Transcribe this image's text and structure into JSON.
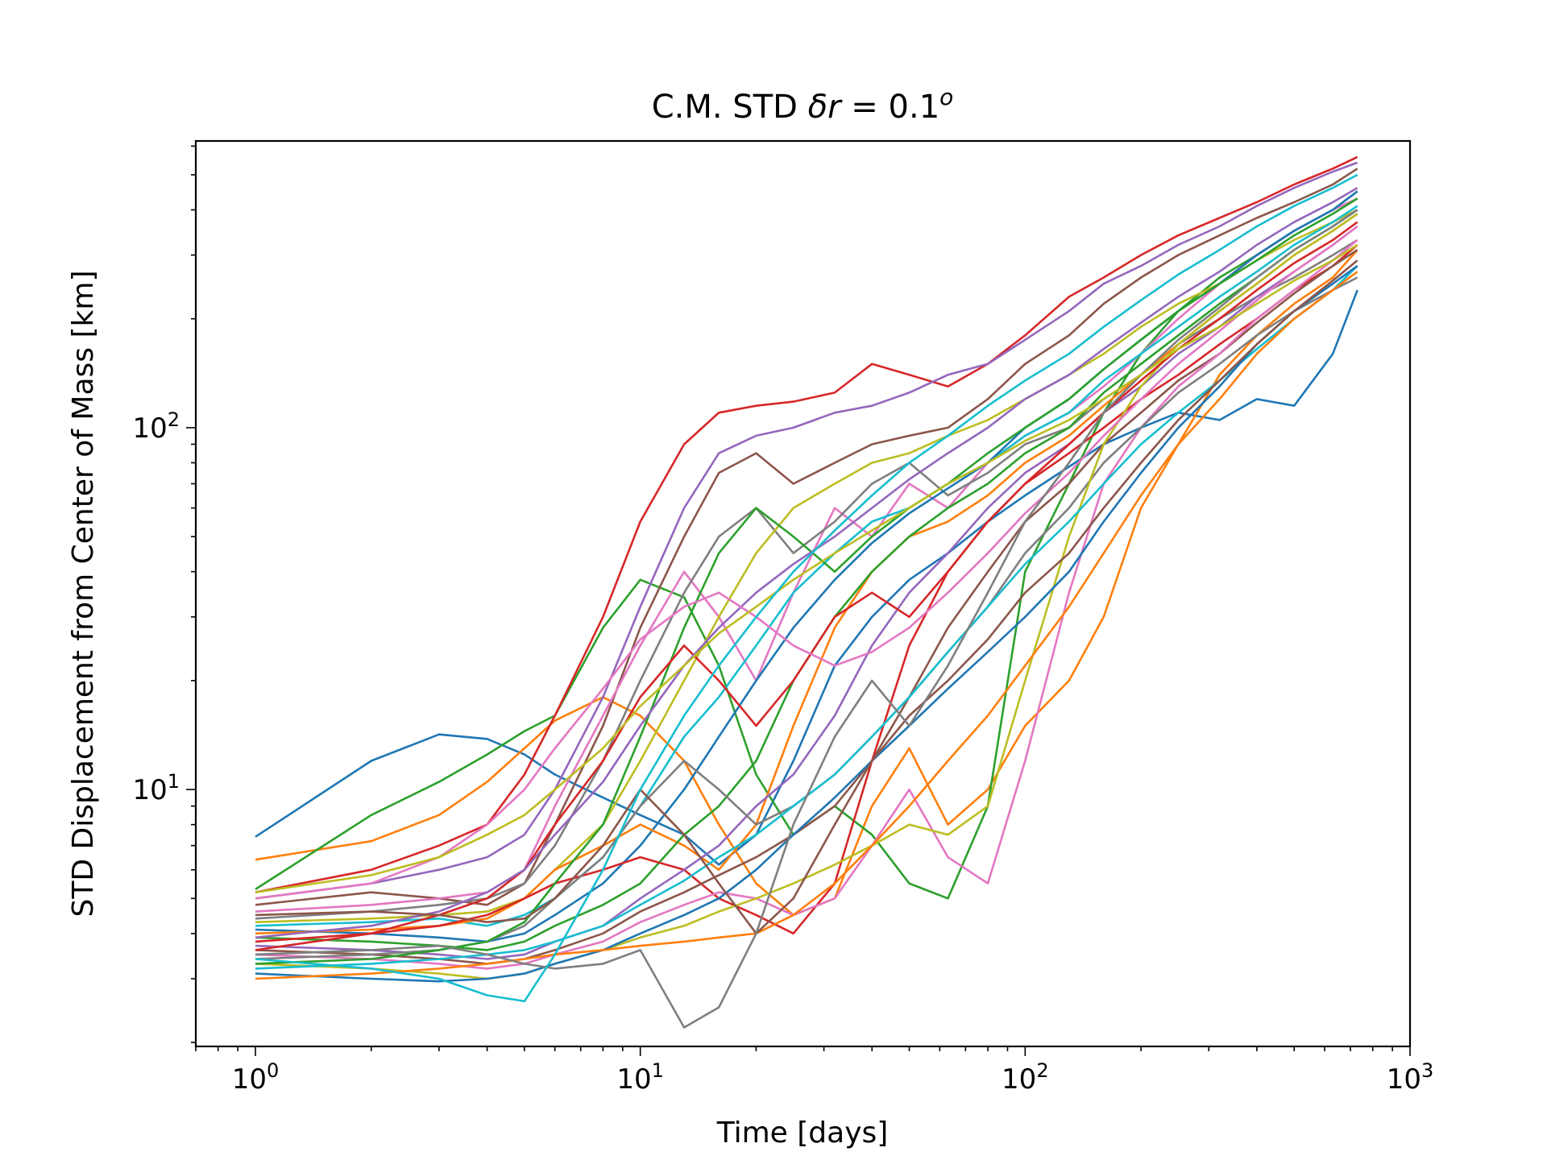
{
  "chart_data": {
    "type": "line",
    "title_text": "C.M. STD ",
    "title_math_var": "δr",
    "title_math_eq": " = 0.1",
    "title_math_sup": "o",
    "xlabel": "Time [days]",
    "ylabel": "STD Displacement from Center of Mass [km]",
    "xscale": "log",
    "yscale": "log",
    "xlim": [
      0.7,
      1000
    ],
    "ylim": [
      1.95,
      620
    ],
    "grid": false,
    "legend": "none",
    "x_ticks": [
      {
        "base": "10",
        "exp": "0",
        "value": 1
      },
      {
        "base": "10",
        "exp": "1",
        "value": 10
      },
      {
        "base": "10",
        "exp": "2",
        "value": 100
      },
      {
        "base": "10",
        "exp": "3",
        "value": 1000
      }
    ],
    "y_ticks": [
      {
        "base": "10",
        "exp": "1",
        "value": 10
      },
      {
        "base": "10",
        "exp": "2",
        "value": 100
      }
    ],
    "x": [
      1,
      2,
      3,
      4,
      5,
      6,
      8,
      10,
      13,
      16,
      20,
      25,
      32,
      40,
      50,
      63,
      80,
      100,
      130,
      160,
      200,
      250,
      320,
      400,
      500,
      630,
      730
    ],
    "palette": [
      "#1f77b4",
      "#ff7f0e",
      "#2ca02c",
      "#d62728",
      "#9467bd",
      "#8c564b",
      "#e377c2",
      "#7f7f7f",
      "#bcbd22",
      "#17becf"
    ],
    "series": [
      {
        "values": [
          7.4,
          12.0,
          14.2,
          13.8,
          12.5,
          11.0,
          9.5,
          8.5,
          7.5,
          6.2,
          7.5,
          12.0,
          22.0,
          30.0,
          38.0,
          45.0,
          55.0,
          65.0,
          78.0,
          90.0,
          100.0,
          110.0,
          105.0,
          120.0,
          115.0,
          160.0,
          240.0
        ]
      },
      {
        "values": [
          6.4,
          7.2,
          8.5,
          10.5,
          13.0,
          15.5,
          18.0,
          16.0,
          12.0,
          8.0,
          5.5,
          4.5,
          5.0,
          9.0,
          13.0,
          8.0,
          10.0,
          15.0,
          20.0,
          30.0,
          60.0,
          90.0,
          140.0,
          180.0,
          220.0,
          260.0,
          310.0
        ]
      },
      {
        "values": [
          5.3,
          8.5,
          10.5,
          12.5,
          14.5,
          16.0,
          28.0,
          38.0,
          34.0,
          22.0,
          11.0,
          7.5,
          9.0,
          7.5,
          5.5,
          5.0,
          9.0,
          40.0,
          70.0,
          110.0,
          160.0,
          210.0,
          260.0,
          300.0,
          350.0,
          400.0,
          450.0
        ]
      },
      {
        "values": [
          5.2,
          6.0,
          7.0,
          8.0,
          11.0,
          16.0,
          30.0,
          55.0,
          90.0,
          110.0,
          115.0,
          118.0,
          125.0,
          150.0,
          140.0,
          130.0,
          150.0,
          180.0,
          230.0,
          260.0,
          300.0,
          340.0,
          380.0,
          420.0,
          470.0,
          520.0,
          560.0
        ]
      },
      {
        "values": [
          5.0,
          5.5,
          6.0,
          6.5,
          7.5,
          10.0,
          18.0,
          32.0,
          60.0,
          85.0,
          95.0,
          100.0,
          110.0,
          115.0,
          125.0,
          140.0,
          150.0,
          175.0,
          210.0,
          250.0,
          280.0,
          320.0,
          360.0,
          410.0,
          460.0,
          510.0,
          540.0
        ]
      },
      {
        "values": [
          4.8,
          5.2,
          5.0,
          4.8,
          5.5,
          8.0,
          15.0,
          28.0,
          50.0,
          75.0,
          85.0,
          70.0,
          80.0,
          90.0,
          95.0,
          100.0,
          120.0,
          150.0,
          180.0,
          220.0,
          260.0,
          300.0,
          340.0,
          380.0,
          420.0,
          470.0,
          520.0
        ]
      },
      {
        "values": [
          4.6,
          4.8,
          5.0,
          5.2,
          6.0,
          9.0,
          16.0,
          25.0,
          40.0,
          30.0,
          20.0,
          35.0,
          60.0,
          50.0,
          70.0,
          60.0,
          80.0,
          95.0,
          110.0,
          130.0,
          160.0,
          200.0,
          250.0,
          300.0,
          350.0,
          400.0,
          430.0
        ]
      },
      {
        "values": [
          4.4,
          4.6,
          4.8,
          5.0,
          5.5,
          7.0,
          12.0,
          20.0,
          35.0,
          50.0,
          60.0,
          45.0,
          55.0,
          70.0,
          80.0,
          65.0,
          75.0,
          90.0,
          100.0,
          120.0,
          140.0,
          170.0,
          200.0,
          230.0,
          260.0,
          300.0,
          330.0
        ]
      },
      {
        "values": [
          4.3,
          4.4,
          4.5,
          4.6,
          5.0,
          6.0,
          8.0,
          12.0,
          20.0,
          30.0,
          45.0,
          60.0,
          70.0,
          80.0,
          85.0,
          95.0,
          105.0,
          120.0,
          140.0,
          160.0,
          190.0,
          220.0,
          250.0,
          290.0,
          330.0,
          370.0,
          400.0
        ]
      },
      {
        "values": [
          4.2,
          4.3,
          4.4,
          4.2,
          4.5,
          5.0,
          6.5,
          9.0,
          14.0,
          18.0,
          25.0,
          35.0,
          45.0,
          55.0,
          60.0,
          70.0,
          80.0,
          95.0,
          110.0,
          135.0,
          160.0,
          190.0,
          230.0,
          270.0,
          320.0,
          370.0,
          410.0
        ]
      },
      {
        "values": [
          4.1,
          4.0,
          3.9,
          3.8,
          4.0,
          4.5,
          5.5,
          7.0,
          10.0,
          14.0,
          20.0,
          28.0,
          38.0,
          48.0,
          58.0,
          68.0,
          80.0,
          100.0,
          120.0,
          145.0,
          175.0,
          210.0,
          250.0,
          300.0,
          350.0,
          400.0,
          450.0
        ]
      },
      {
        "values": [
          4.0,
          4.1,
          4.2,
          4.4,
          5.0,
          6.0,
          7.0,
          8.0,
          7.0,
          6.0,
          8.0,
          15.0,
          28.0,
          40.0,
          50.0,
          55.0,
          65.0,
          80.0,
          95.0,
          115.0,
          140.0,
          170.0,
          210.0,
          250.0,
          300.0,
          350.0,
          390.0
        ]
      },
      {
        "values": [
          3.9,
          3.8,
          3.7,
          3.6,
          3.8,
          4.2,
          4.8,
          5.5,
          7.5,
          9.0,
          12.0,
          20.0,
          30.0,
          40.0,
          50.0,
          60.0,
          70.0,
          85.0,
          100.0,
          125.0,
          150.0,
          180.0,
          220.0,
          260.0,
          310.0,
          360.0,
          400.0
        ]
      },
      {
        "values": [
          3.8,
          4.0,
          4.2,
          4.5,
          5.0,
          5.5,
          6.0,
          6.5,
          6.0,
          5.0,
          4.5,
          4.0,
          5.5,
          12.0,
          25.0,
          40.0,
          55.0,
          70.0,
          85.0,
          100.0,
          120.0,
          140.0,
          170.0,
          200.0,
          240.0,
          280.0,
          320.0
        ]
      },
      {
        "values": [
          3.7,
          3.6,
          3.5,
          3.4,
          3.5,
          3.8,
          4.2,
          5.0,
          6.0,
          7.0,
          9.0,
          11.0,
          16.0,
          25.0,
          35.0,
          45.0,
          60.0,
          75.0,
          90.0,
          110.0,
          130.0,
          160.0,
          190.0,
          230.0,
          270.0,
          320.0,
          360.0
        ]
      },
      {
        "values": [
          3.6,
          3.5,
          3.4,
          3.3,
          3.4,
          3.6,
          4.0,
          4.6,
          5.2,
          5.8,
          6.5,
          7.5,
          9.0,
          12.0,
          18.0,
          28.0,
          40.0,
          55.0,
          70.0,
          90.0,
          110.0,
          135.0,
          160.0,
          195.0,
          235.0,
          280.0,
          310.0
        ]
      },
      {
        "values": [
          3.5,
          3.4,
          3.3,
          3.2,
          3.3,
          3.5,
          3.8,
          4.3,
          4.8,
          5.2,
          5.0,
          4.5,
          5.0,
          7.0,
          10.0,
          6.5,
          5.5,
          12.0,
          35.0,
          70.0,
          100.0,
          130.0,
          160.0,
          200.0,
          240.0,
          290.0,
          330.0
        ]
      },
      {
        "values": [
          3.4,
          3.5,
          3.6,
          3.8,
          4.2,
          5.0,
          6.5,
          9.0,
          12.0,
          10.0,
          8.0,
          9.0,
          11.0,
          14.0,
          18.0,
          24.0,
          32.0,
          45.0,
          60.0,
          80.0,
          100.0,
          125.0,
          150.0,
          180.0,
          210.0,
          240.0,
          260.0
        ]
      },
      {
        "values": [
          3.3,
          3.2,
          3.1,
          3.0,
          3.1,
          3.3,
          3.6,
          3.9,
          4.2,
          4.6,
          5.0,
          5.5,
          6.2,
          7.0,
          8.0,
          7.5,
          9.0,
          20.0,
          50.0,
          90.0,
          130.0,
          170.0,
          210.0,
          250.0,
          300.0,
          350.0,
          390.0
        ]
      },
      {
        "values": [
          3.2,
          3.3,
          3.4,
          3.5,
          3.6,
          3.8,
          4.2,
          4.8,
          5.6,
          6.5,
          7.5,
          9.0,
          11.0,
          14.0,
          18.0,
          24.0,
          32.0,
          42.0,
          55.0,
          70.0,
          90.0,
          110.0,
          135.0,
          165.0,
          200.0,
          240.0,
          280.0
        ]
      },
      {
        "values": [
          3.1,
          3.0,
          2.95,
          3.0,
          3.1,
          3.3,
          3.6,
          4.0,
          4.5,
          5.0,
          6.0,
          7.5,
          9.5,
          12.0,
          15.0,
          19.0,
          24.0,
          30.0,
          40.0,
          55.0,
          75.0,
          100.0,
          130.0,
          170.0,
          210.0,
          250.0,
          280.0
        ]
      },
      {
        "values": [
          3.0,
          3.1,
          3.2,
          3.3,
          3.4,
          3.5,
          3.6,
          3.7,
          3.8,
          3.9,
          4.0,
          4.5,
          5.5,
          7.0,
          9.0,
          12.0,
          16.0,
          22.0,
          32.0,
          45.0,
          65.0,
          90.0,
          120.0,
          160.0,
          200.0,
          240.0,
          270.0
        ]
      },
      {
        "values": [
          3.3,
          3.4,
          3.6,
          3.8,
          4.3,
          5.5,
          8.0,
          14.0,
          28.0,
          45.0,
          60.0,
          50.0,
          40.0,
          50.0,
          60.0,
          70.0,
          85.0,
          100.0,
          120.0,
          145.0,
          175.0,
          210.0,
          250.0,
          290.0,
          340.0,
          390.0,
          430.0
        ]
      },
      {
        "values": [
          3.6,
          4.0,
          4.5,
          5.0,
          6.0,
          8.0,
          12.0,
          18.0,
          25.0,
          20.0,
          15.0,
          20.0,
          30.0,
          35.0,
          30.0,
          40.0,
          55.0,
          70.0,
          90.0,
          110.0,
          135.0,
          165.0,
          200.0,
          240.0,
          285.0,
          330.0,
          370.0
        ]
      },
      {
        "values": [
          3.9,
          4.2,
          4.6,
          5.2,
          6.0,
          7.5,
          10.5,
          15.0,
          22.0,
          28.0,
          35.0,
          42.0,
          50.0,
          60.0,
          72.0,
          85.0,
          100.0,
          120.0,
          140.0,
          165.0,
          195.0,
          230.0,
          270.0,
          320.0,
          370.0,
          420.0,
          460.0
        ]
      },
      {
        "values": [
          4.5,
          4.6,
          4.5,
          4.3,
          4.4,
          5.0,
          7.0,
          10.0,
          7.5,
          5.5,
          4.0,
          5.0,
          8.0,
          12.0,
          16.0,
          20.0,
          26.0,
          35.0,
          45.0,
          60.0,
          80.0,
          105.0,
          135.0,
          170.0,
          210.0,
          255.0,
          290.0
        ]
      },
      {
        "values": [
          5.0,
          5.5,
          6.5,
          8.0,
          10.0,
          13.0,
          19.0,
          26.0,
          32.0,
          35.0,
          30.0,
          25.0,
          22.0,
          24.0,
          28.0,
          35.0,
          45.0,
          58.0,
          75.0,
          95.0,
          120.0,
          150.0,
          185.0,
          225.0,
          270.0,
          320.0,
          360.0
        ]
      },
      {
        "values": [
          3.5,
          3.6,
          3.7,
          3.5,
          3.3,
          3.2,
          3.3,
          3.6,
          2.2,
          2.5,
          4.0,
          8.0,
          14.0,
          20.0,
          15.0,
          22.0,
          35.0,
          55.0,
          80.0,
          110.0,
          140.0,
          175.0,
          215.0,
          260.0,
          310.0,
          360.0,
          400.0
        ]
      },
      {
        "values": [
          5.2,
          5.8,
          6.5,
          7.5,
          8.5,
          10.0,
          13.0,
          17.0,
          22.0,
          27.0,
          32.0,
          38.0,
          45.0,
          52.0,
          60.0,
          70.0,
          80.0,
          92.0,
          105.0,
          120.0,
          140.0,
          165.0,
          190.0,
          220.0,
          255.0,
          290.0,
          320.0
        ]
      },
      {
        "values": [
          3.4,
          3.2,
          3.0,
          2.7,
          2.6,
          3.5,
          6.0,
          10.0,
          16.0,
          22.0,
          30.0,
          40.0,
          52.0,
          65.0,
          80.0,
          95.0,
          115.0,
          135.0,
          160.0,
          190.0,
          225.0,
          265.0,
          310.0,
          360.0,
          410.0,
          460.0,
          500.0
        ]
      }
    ]
  }
}
